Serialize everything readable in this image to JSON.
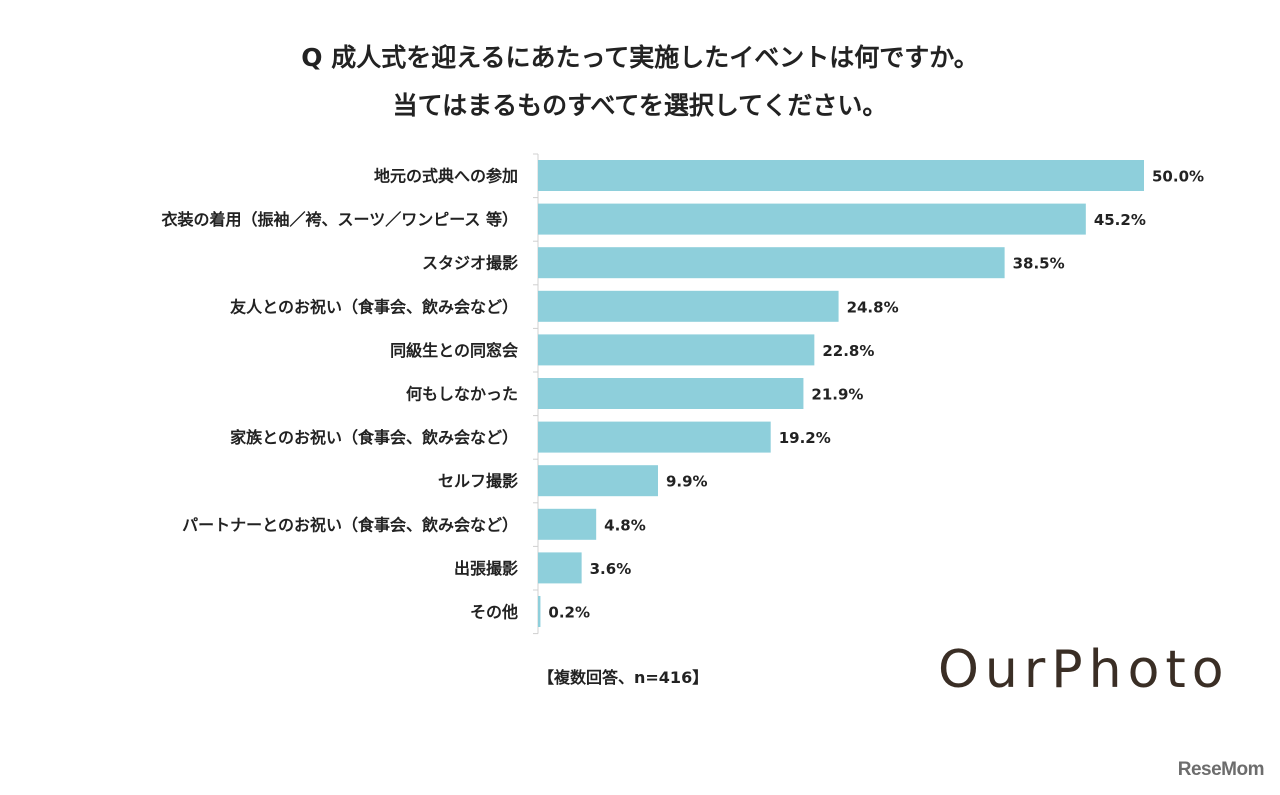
{
  "chart_data": {
    "type": "bar",
    "orientation": "horizontal",
    "title": "Q 成人式を迎えるにあたって実施したイベントは何ですか。",
    "subtitle": "当てはまるものすべてを選択してください。",
    "categories": [
      "地元の式典への参加",
      "衣装の着用（振袖／袴、スーツ／ワンピース 等）",
      "スタジオ撮影",
      "友人とのお祝い（食事会、飲み会など）",
      "同級生との同窓会",
      "何もしなかった",
      "家族とのお祝い（食事会、飲み会など）",
      "セルフ撮影",
      "パートナーとのお祝い（食事会、飲み会など）",
      "出張撮影",
      "その他"
    ],
    "values": [
      50.0,
      45.2,
      38.5,
      24.8,
      22.8,
      21.9,
      19.2,
      9.9,
      4.8,
      3.6,
      0.2
    ],
    "value_labels": [
      "50.0%",
      "45.2%",
      "38.5%",
      "24.8%",
      "22.8%",
      "21.9%",
      "19.2%",
      "9.9%",
      "4.8%",
      "3.6%",
      "0.2%"
    ],
    "xlim": [
      0,
      50
    ],
    "bar_color": "#8ecfdb",
    "grid": false,
    "note": "【複数回答、n=416】"
  },
  "branding": {
    "logo_text": "OurPhoto",
    "logo_color": "#3a2e25",
    "watermark": "ReseMom"
  }
}
